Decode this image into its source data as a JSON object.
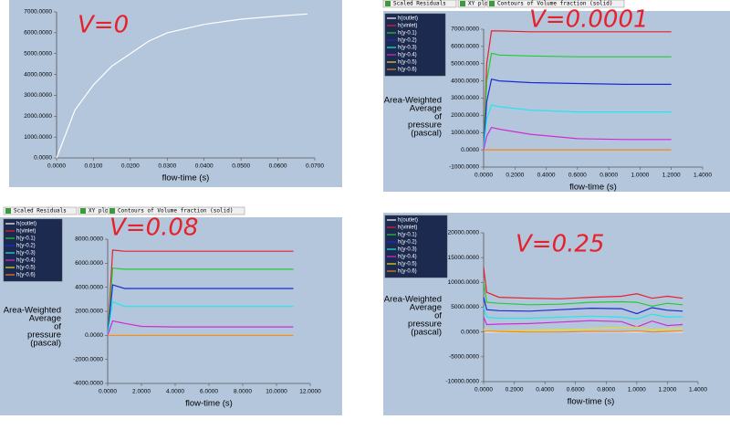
{
  "chart_data": [
    {
      "type": "line",
      "annotation": "V=0",
      "xlabel": "flow-time (s)",
      "color": "#ffffff",
      "x": [
        0,
        0.005,
        0.01,
        0.015,
        0.02,
        0.025,
        0.03,
        0.04,
        0.05,
        0.06,
        0.068
      ],
      "values": [
        0,
        2300,
        3500,
        4400,
        5000,
        5600,
        6000,
        6400,
        6650,
        6800,
        6900
      ],
      "xlim": [
        0,
        0.07
      ],
      "ylim": [
        0,
        7000
      ],
      "xticks": [
        {
          "value": 0,
          "label": "0.0000"
        },
        {
          "value": 0.01,
          "label": "0.0100"
        },
        {
          "value": 0.02,
          "label": "0.0200"
        },
        {
          "value": 0.03,
          "label": "0.0300"
        },
        {
          "value": 0.04,
          "label": "0.0400"
        },
        {
          "value": 0.05,
          "label": "0.0500"
        },
        {
          "value": 0.06,
          "label": "0.0600"
        },
        {
          "value": 0.07,
          "label": "0.0700"
        }
      ],
      "yticks": [
        {
          "value": 0,
          "label": "0.0000"
        },
        {
          "value": 1000,
          "label": "1000.0000"
        },
        {
          "value": 2000,
          "label": "2000.0000"
        },
        {
          "value": 3000,
          "label": "3000.0000"
        },
        {
          "value": 4000,
          "label": "4000.0000"
        },
        {
          "value": 5000,
          "label": "5000.0000"
        },
        {
          "value": 6000,
          "label": "6000.0000"
        },
        {
          "value": 7000,
          "label": "7000.0000"
        }
      ]
    },
    {
      "type": "line",
      "annotation": "V=0.0001",
      "xlabel": "flow-time (s)",
      "ylabel": [
        "Area-Weighted",
        "Average",
        "of",
        "pressure",
        "(pascal)"
      ],
      "tabs": [
        "Scaled Residuals",
        "XY plot",
        "Contours of Volume fraction (solid)"
      ],
      "legend": "top-left",
      "x": [
        0,
        0.02,
        0.05,
        0.1,
        0.3,
        0.6,
        0.9,
        1.2
      ],
      "series": [
        {
          "name": "h(outlet)",
          "color": "#ffffff",
          "values": [
            0,
            0,
            0,
            0,
            0,
            0,
            0,
            0
          ]
        },
        {
          "name": "h(vinlet)",
          "color": "#e8202a",
          "values": [
            0,
            5000,
            6900,
            6900,
            6850,
            6850,
            6850,
            6850
          ]
        },
        {
          "name": "h(y-0.1)",
          "color": "#22cc33",
          "values": [
            0,
            4000,
            5600,
            5500,
            5450,
            5400,
            5400,
            5400
          ]
        },
        {
          "name": "h(y-0.2)",
          "color": "#1a2bd8",
          "values": [
            0,
            2800,
            4100,
            4000,
            3900,
            3850,
            3800,
            3800
          ]
        },
        {
          "name": "h(y-0.3)",
          "color": "#22e6f0",
          "values": [
            0,
            1800,
            2600,
            2500,
            2300,
            2200,
            2200,
            2200
          ]
        },
        {
          "name": "h(y-0.4)",
          "color": "#d42ad4",
          "values": [
            0,
            800,
            1300,
            1200,
            900,
            650,
            600,
            600
          ]
        },
        {
          "name": "h(y-0.5)",
          "color": "#e8e020",
          "values": [
            0,
            0,
            0,
            0,
            0,
            0,
            0,
            0
          ]
        },
        {
          "name": "h(y-0.6)",
          "color": "#f08020",
          "values": [
            0,
            0,
            0,
            0,
            0,
            0,
            0,
            0
          ]
        }
      ],
      "xlim": [
        0,
        1.4
      ],
      "ylim": [
        -1000,
        7000
      ],
      "xticks": [
        {
          "value": 0,
          "label": "0.0000"
        },
        {
          "value": 0.2,
          "label": "0.2000"
        },
        {
          "value": 0.4,
          "label": "0.4000"
        },
        {
          "value": 0.6,
          "label": "0.6000"
        },
        {
          "value": 0.8,
          "label": "0.8000"
        },
        {
          "value": 1,
          "label": "1.0000"
        },
        {
          "value": 1.2,
          "label": "1.2000"
        },
        {
          "value": 1.4,
          "label": "1.4000"
        }
      ],
      "yticks": [
        {
          "value": -1000,
          "label": "-1000.0000"
        },
        {
          "value": 0,
          "label": "0.0000"
        },
        {
          "value": 1000,
          "label": "1000.0000"
        },
        {
          "value": 2000,
          "label": "2000.0000"
        },
        {
          "value": 3000,
          "label": "3000.0000"
        },
        {
          "value": 4000,
          "label": "4000.0000"
        },
        {
          "value": 5000,
          "label": "5000.0000"
        },
        {
          "value": 6000,
          "label": "6000.0000"
        },
        {
          "value": 7000,
          "label": "7000.0000"
        }
      ]
    },
    {
      "type": "line",
      "annotation": "V=0.08",
      "xlabel": "flow-time (s)",
      "ylabel": [
        "Area-Weighted",
        "Average",
        "of",
        "pressure",
        "(pascal)"
      ],
      "tabs": [
        "Scaled Residuals",
        "XY plot",
        "Contours of Volume fraction (solid)"
      ],
      "legend": "top-left",
      "x": [
        0,
        0.3,
        1,
        2,
        4,
        6,
        8,
        10,
        11
      ],
      "series": [
        {
          "name": "h(outlet)",
          "color": "#ffffff",
          "values": [
            0,
            0,
            0,
            0,
            0,
            0,
            0,
            0,
            0
          ]
        },
        {
          "name": "h(vinlet)",
          "color": "#e8202a",
          "values": [
            0,
            7100,
            7000,
            7000,
            7000,
            7000,
            7000,
            7000,
            7000
          ]
        },
        {
          "name": "h(y-0.1)",
          "color": "#22cc33",
          "values": [
            0,
            5600,
            5500,
            5500,
            5500,
            5500,
            5500,
            5500,
            5500
          ]
        },
        {
          "name": "h(y-0.2)",
          "color": "#1a2bd8",
          "values": [
            0,
            4200,
            3900,
            3900,
            3900,
            3900,
            3900,
            3900,
            3900
          ]
        },
        {
          "name": "h(y-0.3)",
          "color": "#22e6f0",
          "values": [
            0,
            2800,
            2400,
            2400,
            2400,
            2400,
            2400,
            2400,
            2400
          ]
        },
        {
          "name": "h(y-0.4)",
          "color": "#d42ad4",
          "values": [
            0,
            1200,
            1000,
            750,
            700,
            700,
            700,
            700,
            700
          ]
        },
        {
          "name": "h(y-0.5)",
          "color": "#e8e020",
          "values": [
            0,
            0,
            0,
            0,
            0,
            0,
            0,
            0,
            0
          ]
        },
        {
          "name": "h(y-0.6)",
          "color": "#f08020",
          "values": [
            0,
            0,
            0,
            0,
            0,
            0,
            0,
            0,
            0
          ]
        }
      ],
      "xlim": [
        0,
        12
      ],
      "ylim": [
        -4000,
        8000
      ],
      "xticks": [
        {
          "value": 0,
          "label": "0.0000"
        },
        {
          "value": 2,
          "label": "2.0000"
        },
        {
          "value": 4,
          "label": "4.0000"
        },
        {
          "value": 6,
          "label": "6.0000"
        },
        {
          "value": 8,
          "label": "8.0000"
        },
        {
          "value": 10,
          "label": "10.0000"
        },
        {
          "value": 12,
          "label": "12.0000"
        }
      ],
      "yticks": [
        {
          "value": -4000,
          "label": "-4000.0000"
        },
        {
          "value": -2000,
          "label": "-2000.0000"
        },
        {
          "value": 0,
          "label": "0.0000"
        },
        {
          "value": 2000,
          "label": "2000.0000"
        },
        {
          "value": 4000,
          "label": "4000.0000"
        },
        {
          "value": 6000,
          "label": "6000.0000"
        },
        {
          "value": 8000,
          "label": "8000.0000"
        }
      ]
    },
    {
      "type": "line",
      "annotation": "V=0.25",
      "xlabel": "flow-time (s)",
      "ylabel": [
        "Area-Weighted",
        "Average",
        "of",
        "pressure",
        "(pascal)"
      ],
      "legend": "top-left",
      "x": [
        0,
        0.02,
        0.1,
        0.3,
        0.5,
        0.7,
        0.9,
        1.0,
        1.1,
        1.2,
        1.3
      ],
      "series": [
        {
          "name": "h(outlet)",
          "color": "#ffffff",
          "values": [
            0,
            0,
            0,
            0,
            0,
            0,
            0,
            0,
            0,
            0,
            0
          ]
        },
        {
          "name": "h(vinlet)",
          "color": "#e8202a",
          "values": [
            13000,
            8000,
            7000,
            6800,
            6700,
            7000,
            7200,
            7700,
            6800,
            7200,
            6800
          ]
        },
        {
          "name": "h(y-0.1)",
          "color": "#22cc33",
          "values": [
            10000,
            6000,
            5800,
            5500,
            5600,
            6000,
            6100,
            6000,
            5200,
            5800,
            5500
          ]
        },
        {
          "name": "h(y-0.2)",
          "color": "#1a2bd8",
          "values": [
            7000,
            4500,
            4300,
            4200,
            4500,
            4800,
            4700,
            3700,
            4900,
            4400,
            4200
          ]
        },
        {
          "name": "h(y-0.3)",
          "color": "#22e6f0",
          "values": [
            5000,
            3000,
            2800,
            2800,
            3000,
            3200,
            3000,
            2600,
            3600,
            3000,
            3100
          ]
        },
        {
          "name": "h(y-0.4)",
          "color": "#d42ad4",
          "values": [
            3000,
            1500,
            1600,
            1700,
            2000,
            2300,
            2100,
            1000,
            2200,
            1300,
            1500
          ]
        },
        {
          "name": "h(y-0.5)",
          "color": "#e8e020",
          "values": [
            500,
            300,
            200,
            300,
            400,
            600,
            900,
            1000,
            400,
            600,
            700
          ]
        },
        {
          "name": "h(y-0.6)",
          "color": "#f08020",
          "values": [
            0,
            200,
            100,
            0,
            0,
            100,
            100,
            200,
            0,
            100,
            200
          ]
        }
      ],
      "xlim": [
        0,
        1.4
      ],
      "ylim": [
        -10000,
        20000
      ],
      "xticks": [
        {
          "value": 0,
          "label": "0.0000"
        },
        {
          "value": 0.2,
          "label": "0.2000"
        },
        {
          "value": 0.4,
          "label": "0.4000"
        },
        {
          "value": 0.6,
          "label": "0.6000"
        },
        {
          "value": 0.8,
          "label": "0.8000"
        },
        {
          "value": 1,
          "label": "1.0000"
        },
        {
          "value": 1.2,
          "label": "1.2000"
        },
        {
          "value": 1.4,
          "label": "1.4000"
        }
      ],
      "yticks": [
        {
          "value": -10000,
          "label": "-10000.0000"
        },
        {
          "value": -5000,
          "label": "-5000.0000"
        },
        {
          "value": 0,
          "label": "0.0000"
        },
        {
          "value": 5000,
          "label": "5000.0000"
        },
        {
          "value": 10000,
          "label": "10000.0000"
        },
        {
          "value": 15000,
          "label": "15000.0000"
        },
        {
          "value": 20000,
          "label": "20000.0000"
        }
      ]
    }
  ]
}
